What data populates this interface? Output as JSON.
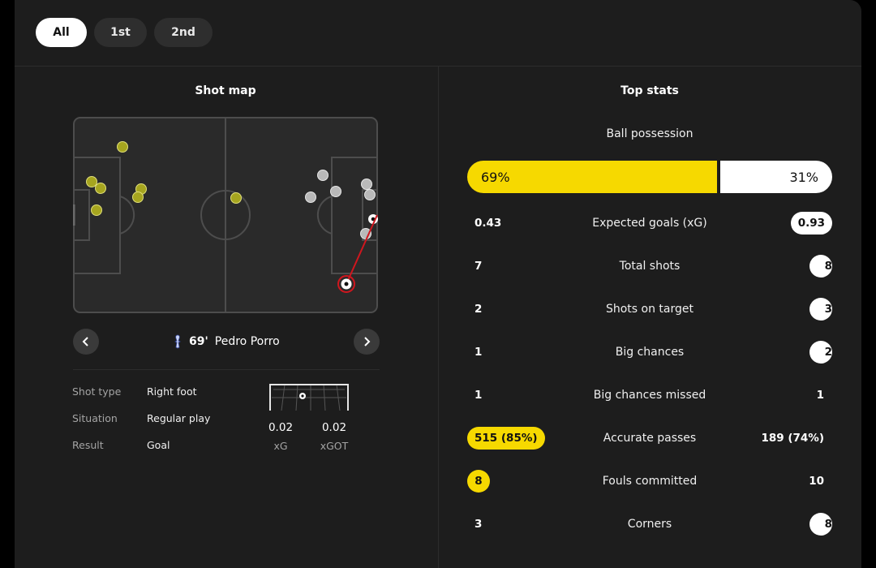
{
  "tabs": [
    {
      "label": "All",
      "active": true
    },
    {
      "label": "1st",
      "active": false
    },
    {
      "label": "2nd",
      "active": false
    }
  ],
  "shot_map": {
    "title": "Shot map",
    "selected_shot": {
      "minute": "69'",
      "player": "Pedro Porro",
      "details": [
        {
          "key": "Shot type",
          "value": "Right foot"
        },
        {
          "key": "Situation",
          "value": "Regular play"
        },
        {
          "key": "Result",
          "value": "Goal"
        }
      ],
      "xg": "0.02",
      "xg_label": "xG",
      "xgot": "0.02",
      "xgot_label": "xGOT"
    },
    "colors": {
      "home": "#a6a51f",
      "away": "#b9b9b9",
      "goal_ring": "#d0161e"
    }
  },
  "top_stats": {
    "title": "Top stats",
    "possession": {
      "label": "Ball possession",
      "home": "69%",
      "away": "31%",
      "home_value": 69,
      "away_value": 31
    },
    "rows": [
      {
        "label": "Expected goals (xG)",
        "home": "0.43",
        "away": "0.93",
        "highlight": "away"
      },
      {
        "label": "Total shots",
        "home": "7",
        "away": "8",
        "highlight": "away"
      },
      {
        "label": "Shots on target",
        "home": "2",
        "away": "3",
        "highlight": "away"
      },
      {
        "label": "Big chances",
        "home": "1",
        "away": "2",
        "highlight": "away"
      },
      {
        "label": "Big chances missed",
        "home": "1",
        "away": "1",
        "highlight": "none"
      },
      {
        "label": "Accurate passes",
        "home": "515 (85%)",
        "away": "189 (74%)",
        "highlight": "home"
      },
      {
        "label": "Fouls committed",
        "home": "8",
        "away": "10",
        "highlight": "home"
      },
      {
        "label": "Corners",
        "home": "3",
        "away": "8",
        "highlight": "away"
      }
    ]
  }
}
